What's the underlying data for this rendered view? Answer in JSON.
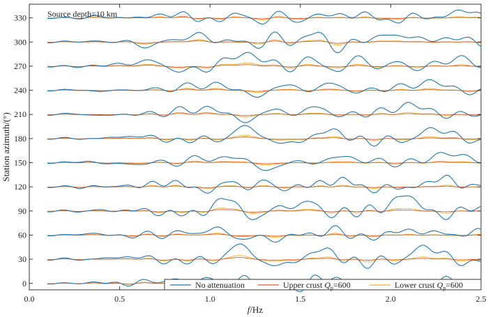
{
  "chart_data": {
    "type": "line",
    "title": "",
    "annotation": "Source depth=10 km",
    "xlabel_italic": "f",
    "xlabel_rest": "/Hz",
    "ylabel": "Station azimuth/(°)",
    "xlim": [
      0.0,
      2.5
    ],
    "ylim": [
      -8,
      347
    ],
    "x_ticks": [
      "0.0",
      "0.5",
      "1.0",
      "1.5",
      "2.0",
      "2.5"
    ],
    "y_ticks": [
      "0",
      "30",
      "60",
      "90",
      "120",
      "150",
      "180",
      "210",
      "240",
      "270",
      "300",
      "330"
    ],
    "x_range_plotted": [
      0.1,
      2.5
    ],
    "trace_baselines_deg": [
      0,
      30,
      60,
      90,
      120,
      150,
      180,
      210,
      240,
      270,
      300,
      330
    ],
    "series": [
      {
        "name": "No attenuation",
        "color": "#1f77b4",
        "approx_peak_amplitude_deg": [
          18,
          22,
          20,
          24,
          20,
          20,
          18,
          22,
          20,
          22,
          20,
          18
        ]
      },
      {
        "name": "Upper crust Qp=600",
        "color": "#e0622a",
        "approx_peak_amplitude_deg": [
          8,
          8,
          8,
          8,
          7,
          7,
          7,
          8,
          8,
          8,
          8,
          7
        ]
      },
      {
        "name": "Lower crust Qp=600",
        "color": "#f2b233",
        "approx_peak_amplitude_deg": [
          11,
          12,
          11,
          12,
          10,
          10,
          10,
          12,
          11,
          12,
          11,
          10
        ]
      }
    ],
    "legend": {
      "placement": "bottom-right",
      "entries": [
        {
          "text": "No attenuation"
        },
        {
          "text_main": "Upper crust ",
          "text_q": "Q",
          "text_sub": "p",
          "text_val": "=600"
        },
        {
          "text_main": "Lower crust ",
          "text_q": "Q",
          "text_sub": "p",
          "text_val": "=600"
        }
      ]
    }
  }
}
